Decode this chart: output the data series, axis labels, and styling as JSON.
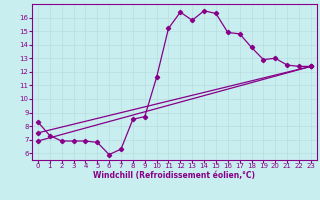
{
  "xlabel": "Windchill (Refroidissement éolien,°C)",
  "bg_color": "#c8eef0",
  "grid_color": "#b8dde0",
  "line_color": "#880088",
  "spine_color": "#880088",
  "xlim": [
    -0.5,
    23.5
  ],
  "ylim": [
    5.5,
    17.0
  ],
  "xticks": [
    0,
    1,
    2,
    3,
    4,
    5,
    6,
    7,
    8,
    9,
    10,
    11,
    12,
    13,
    14,
    15,
    16,
    17,
    18,
    19,
    20,
    21,
    22,
    23
  ],
  "yticks": [
    6,
    7,
    8,
    9,
    10,
    11,
    12,
    13,
    14,
    15,
    16
  ],
  "line1_x": [
    0,
    1,
    2,
    3,
    4,
    5,
    6,
    7,
    8,
    9,
    10,
    11,
    12,
    13,
    14,
    15,
    16,
    17,
    18,
    19,
    20,
    21,
    22,
    23
  ],
  "line1_y": [
    8.3,
    7.3,
    6.9,
    6.9,
    6.9,
    6.8,
    5.9,
    6.3,
    8.5,
    8.7,
    11.6,
    15.2,
    16.4,
    15.8,
    16.5,
    16.3,
    14.9,
    14.8,
    13.8,
    12.9,
    13.0,
    12.5,
    12.4,
    12.4
  ],
  "line2_x": [
    0,
    23
  ],
  "line2_y": [
    7.5,
    12.4
  ],
  "line3_x": [
    0,
    23
  ],
  "line3_y": [
    6.9,
    12.4
  ],
  "marker": "D",
  "markersize": 2.2,
  "linewidth": 0.9,
  "tick_fontsize": 5.0,
  "xlabel_fontsize": 5.5
}
